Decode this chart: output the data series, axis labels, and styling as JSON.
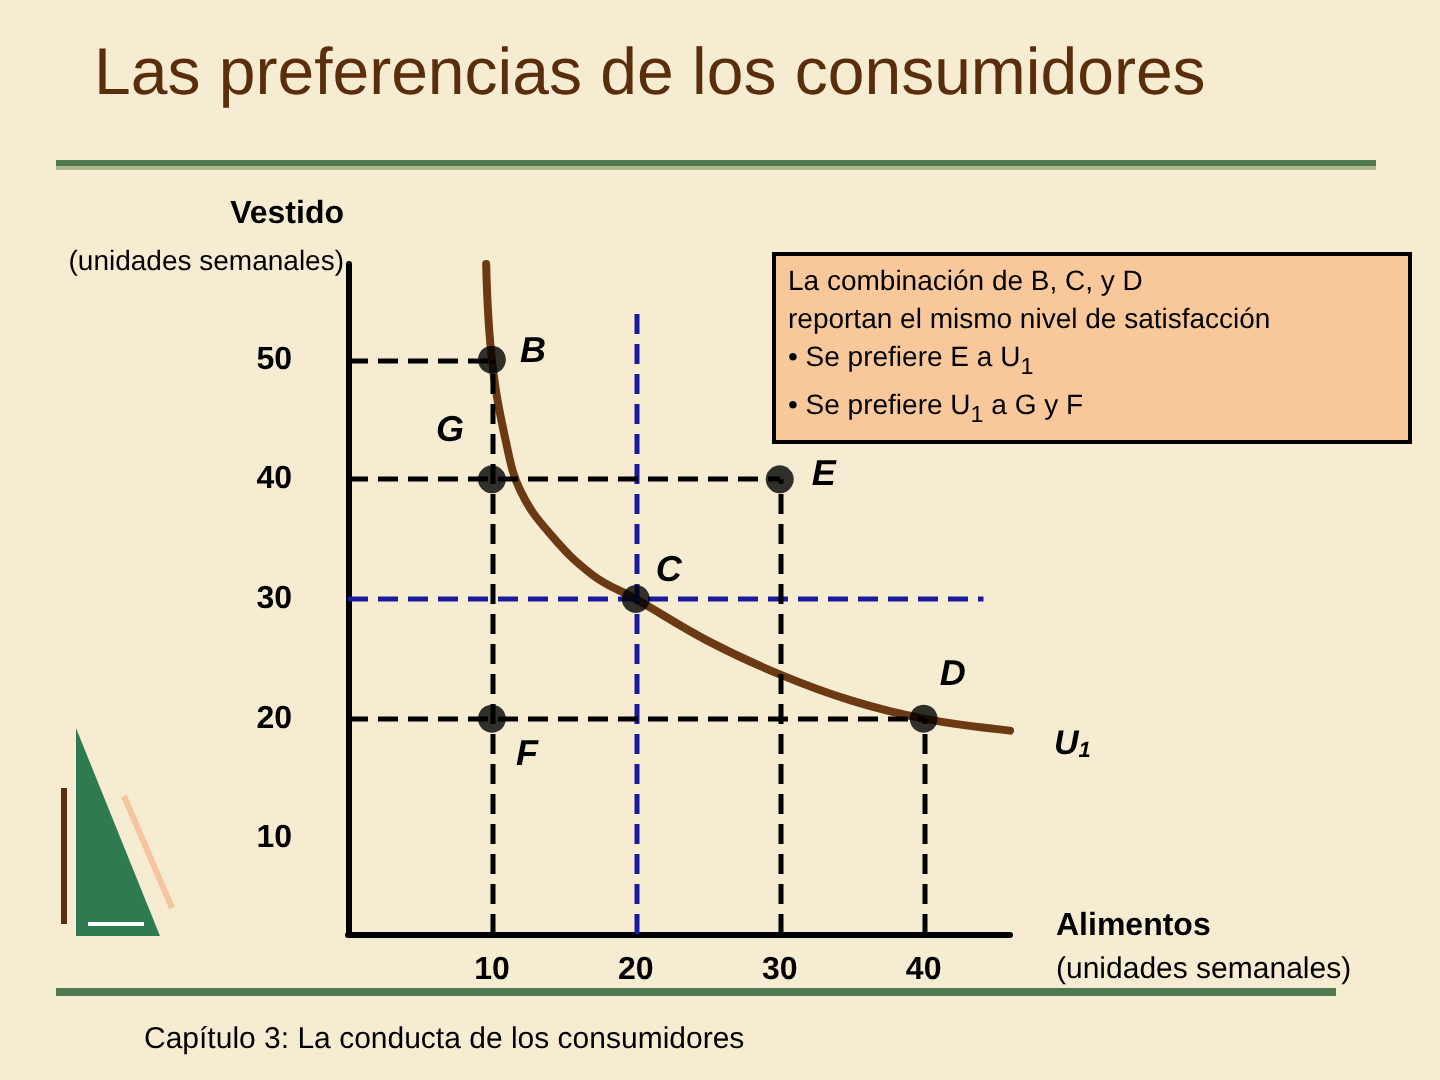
{
  "chart_data": {
    "type": "line",
    "title": "Las preferencias de los consumidores",
    "xlabel": "Alimentos\n(unidades semanales)",
    "ylabel": "Vestido\n(unidades semanales)",
    "xlim": [
      0,
      46
    ],
    "ylim": [
      2,
      58
    ],
    "xticks": [
      10,
      20,
      30,
      40
    ],
    "yticks": [
      10,
      20,
      30,
      40,
      50
    ],
    "grid": false,
    "legend": false,
    "series": [
      {
        "name": "U$_{1}$",
        "color": "#6b3a12",
        "marker": "none",
        "x": [
          9.6,
          10,
          11,
          12,
          14,
          17,
          20,
          25,
          30,
          35,
          40,
          46
        ],
        "values": [
          58,
          50,
          43,
          39,
          35.5,
          32,
          30,
          26.5,
          23.7,
          21.5,
          20,
          19
        ]
      },
      {
        "type": "scatter",
        "color": "#000000",
        "marker": "circle",
        "x": [
          10,
          10,
          30,
          20,
          40,
          10
        ],
        "values": [
          50,
          40,
          40,
          30,
          20,
          20
        ]
      }
    ],
    "ref_lines": [
      {
        "axis": "x",
        "value": 20,
        "color": "#1a1aa0",
        "line_style": "dashed"
      },
      {
        "axis": "y",
        "value": 30,
        "color": "#1a1aa0",
        "line_style": "dashed"
      },
      {
        "axis": "x",
        "value": 10,
        "color": "#000000",
        "line_style": "dashed"
      },
      {
        "axis": "x",
        "value": 30,
        "color": "#000000",
        "line_style": "dashed"
      },
      {
        "axis": "x",
        "value": 40,
        "color": "#000000",
        "line_style": "dashed"
      },
      {
        "axis": "y",
        "value": 50,
        "color": "#000000",
        "line_style": "dashed"
      },
      {
        "axis": "y",
        "value": 40,
        "color": "#000000",
        "line_style": "dashed"
      },
      {
        "axis": "y",
        "value": 20,
        "color": "#000000",
        "line_style": "dashed"
      }
    ],
    "annotations": [
      {
        "text": "B",
        "x": 10,
        "y": 50
      },
      {
        "text": "G",
        "x": 10,
        "y": 40
      },
      {
        "text": "E",
        "x": 30,
        "y": 40
      },
      {
        "text": "C",
        "x": 20,
        "y": 30
      },
      {
        "text": "D",
        "x": 40,
        "y": 20
      },
      {
        "text": "F",
        "x": 10,
        "y": 20
      },
      "La combinación de B, C, y D\nreportan el mismo nivel de satisfacción\n• Se prefiere E  a U$_{1}$\n• Se prefiere U$_{1}$ a G y F",
      "Capítulo 3: La conducta de los consumidores"
    ]
  }
}
